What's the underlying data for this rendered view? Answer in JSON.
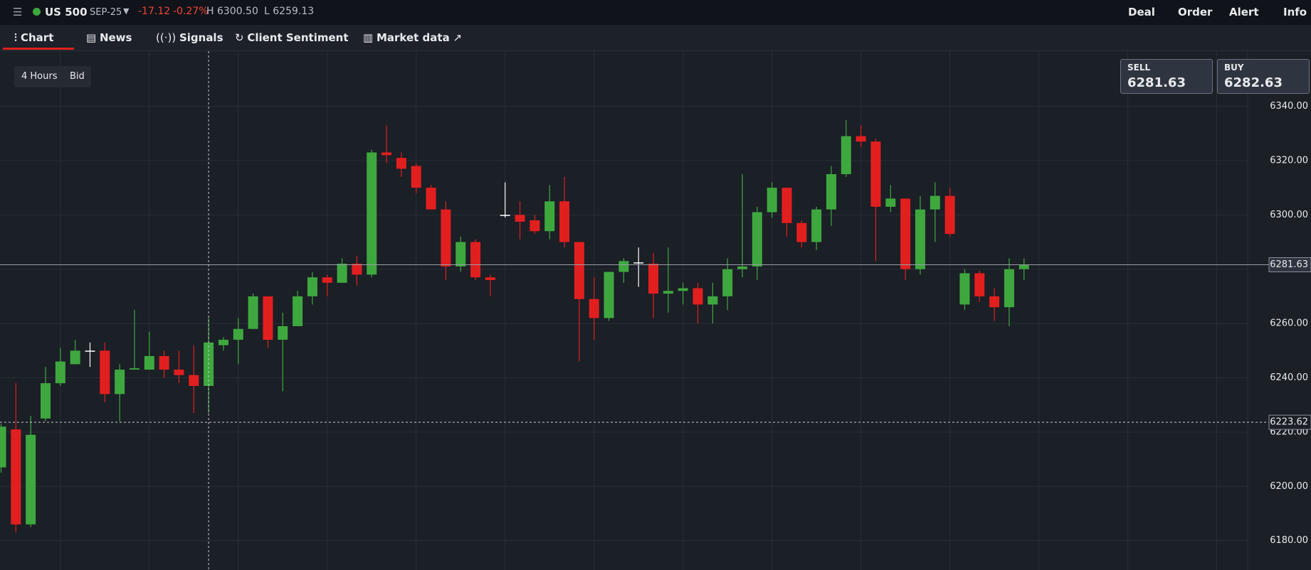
{
  "header": {
    "symbol": "US 500",
    "contract": "SEP-25",
    "change": "-17.12",
    "change_pct": "-0.27%",
    "high": "H 6300.50",
    "low": "L 6259.13",
    "nav": [
      "Deal",
      "Order",
      "Alert",
      "Info"
    ]
  },
  "tabs": [
    "Chart",
    "News",
    "Signals",
    "Client Sentiment",
    "Market data"
  ],
  "controls": {
    "interval": "4 Hours",
    "price_type": "Bid"
  },
  "sell": {
    "label": "SELL",
    "price": "6281.63"
  },
  "buy": {
    "label": "BUY",
    "price": "6282.63"
  },
  "chart_data": {
    "type": "candlestick",
    "open": [
      6207,
      6221,
      6186,
      6225,
      6238,
      6245,
      6250,
      6250,
      6234,
      6243,
      6243,
      6248,
      6243,
      6241,
      6237,
      6252,
      6254,
      6258,
      6270,
      6254,
      6259,
      6270,
      6277,
      6275,
      6282,
      6278,
      6323,
      6321,
      6318,
      6310,
      6302,
      6281,
      6290,
      6277,
      6300,
      6300,
      6298,
      6294,
      6305,
      6290,
      6269,
      6262,
      6279,
      6282.5,
      6282,
      6271,
      6272,
      6273,
      6267,
      6270,
      6280,
      6281,
      6301,
      6310,
      6297,
      6290,
      6302,
      6315,
      6329,
      6327,
      6303,
      6306,
      6280,
      6302,
      6307,
      6267,
      6278.5,
      6270,
      6266,
      6280
    ],
    "high": [
      6223,
      6238,
      6226,
      6244,
      6251,
      6254,
      6253,
      6253,
      6245,
      6265,
      6257,
      6250,
      6250,
      6252,
      6262,
      6255,
      6262,
      6271,
      6270,
      6264,
      6272,
      6279,
      6278,
      6284,
      6285,
      6324,
      6333,
      6323,
      6319,
      6311,
      6305,
      6292,
      6291,
      6278,
      6312,
      6305,
      6300,
      6311,
      6314,
      6290,
      6277,
      6279,
      6284,
      6288,
      6286,
      6288,
      6275,
      6275,
      6275,
      6284,
      6315,
      6303,
      6312,
      6310,
      6298,
      6303,
      6318,
      6335,
      6333,
      6328,
      6311,
      6306,
      6307,
      6312,
      6310,
      6280,
      6279.5,
      6273,
      6284,
      6284
    ],
    "low": [
      6205,
      6183,
      6185,
      6224,
      6237,
      6245,
      6244,
      6231,
      6224,
      6243,
      6243,
      6240,
      6238,
      6227,
      6227,
      6250,
      6245,
      6258,
      6251,
      6235,
      6259,
      6267,
      6270,
      6275,
      6274,
      6277,
      6319,
      6314,
      6308,
      6302,
      6276,
      6279,
      6276,
      6270,
      6299,
      6291,
      6293,
      6291,
      6288,
      6246,
      6254,
      6261,
      6275,
      6273.5,
      6262,
      6264,
      6267,
      6260,
      6260,
      6265,
      6277,
      6276,
      6299,
      6292,
      6288,
      6287,
      6296,
      6314,
      6325,
      6283,
      6301,
      6276,
      6278,
      6290,
      6292,
      6265,
      6268,
      6261,
      6259,
      6276
    ],
    "close": [
      6222,
      6186,
      6219,
      6238,
      6246,
      6250,
      6250,
      6234,
      6243,
      6243.5,
      6248,
      6243,
      6241,
      6237,
      6253,
      6254,
      6258,
      6270,
      6254,
      6259,
      6270,
      6277,
      6275,
      6282,
      6278,
      6323,
      6322,
      6317,
      6310,
      6302,
      6281,
      6290,
      6277,
      6276,
      6300,
      6297.5,
      6294,
      6305,
      6290,
      6269,
      6262,
      6279,
      6283,
      6282.5,
      6271,
      6272,
      6273,
      6267,
      6270,
      6280,
      6281,
      6301,
      6310,
      6297,
      6290,
      6302,
      6315,
      6329,
      6327,
      6303,
      6306,
      6280,
      6302,
      6307,
      6293,
      6278.5,
      6270,
      6266,
      6280,
      6281.5
    ],
    "up_color": "#3ea83f",
    "down_color": "#e21f1f",
    "doji_color": "#ffffff",
    "ylim": [
      6169.2,
      6360.3
    ],
    "yticks": [
      {
        "value": 6180,
        "label": "6180.00"
      },
      {
        "value": 6200,
        "label": "6200.00"
      },
      {
        "value": 6220,
        "label": "6220.00"
      },
      {
        "value": 6240,
        "label": "6240.00"
      },
      {
        "value": 6260,
        "label": "6260.00"
      },
      {
        "value": 6280,
        "label": "6280.00"
      },
      {
        "value": 6300,
        "label": "6300.00"
      },
      {
        "value": 6320,
        "label": "6320.00"
      },
      {
        "value": 6340,
        "label": "6340.00"
      }
    ],
    "grid": true,
    "price_line": 6281.63,
    "crosshair": 6223.62
  }
}
